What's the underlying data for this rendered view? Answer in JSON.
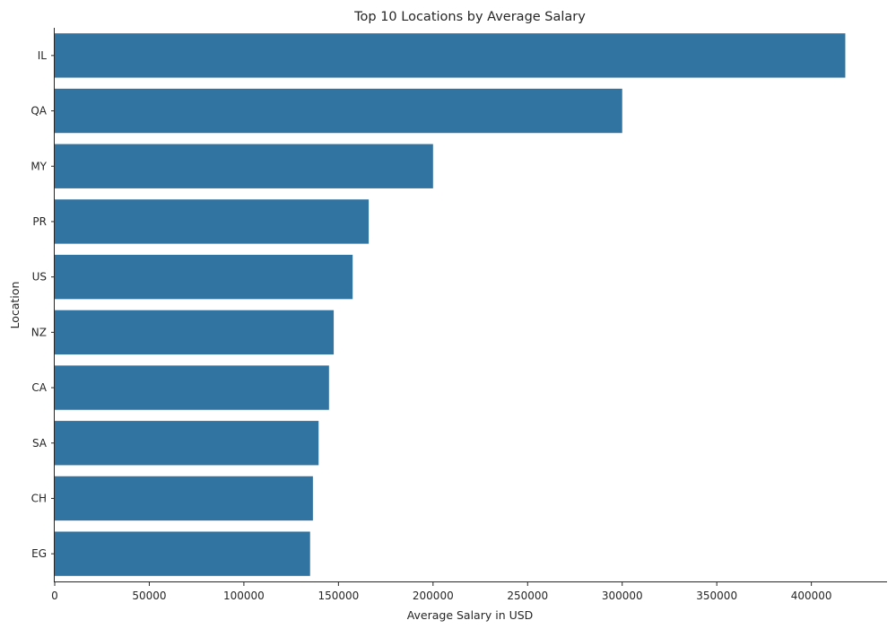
{
  "chart_data": {
    "type": "bar",
    "orientation": "horizontal",
    "title": "Top 10 Locations by Average Salary",
    "xlabel": "Average Salary in USD",
    "ylabel": "Location",
    "categories": [
      "IL",
      "QA",
      "MY",
      "PR",
      "US",
      "NZ",
      "CA",
      "SA",
      "CH",
      "EG"
    ],
    "values": [
      417937,
      300000,
      200000,
      166000,
      157500,
      147500,
      145000,
      139500,
      136500,
      135000
    ],
    "xlim": [
      0,
      440000
    ],
    "xticks": [
      0,
      50000,
      100000,
      150000,
      200000,
      250000,
      300000,
      350000,
      400000
    ],
    "bar_color": "#3274a1",
    "grid": false,
    "legend": "none"
  }
}
